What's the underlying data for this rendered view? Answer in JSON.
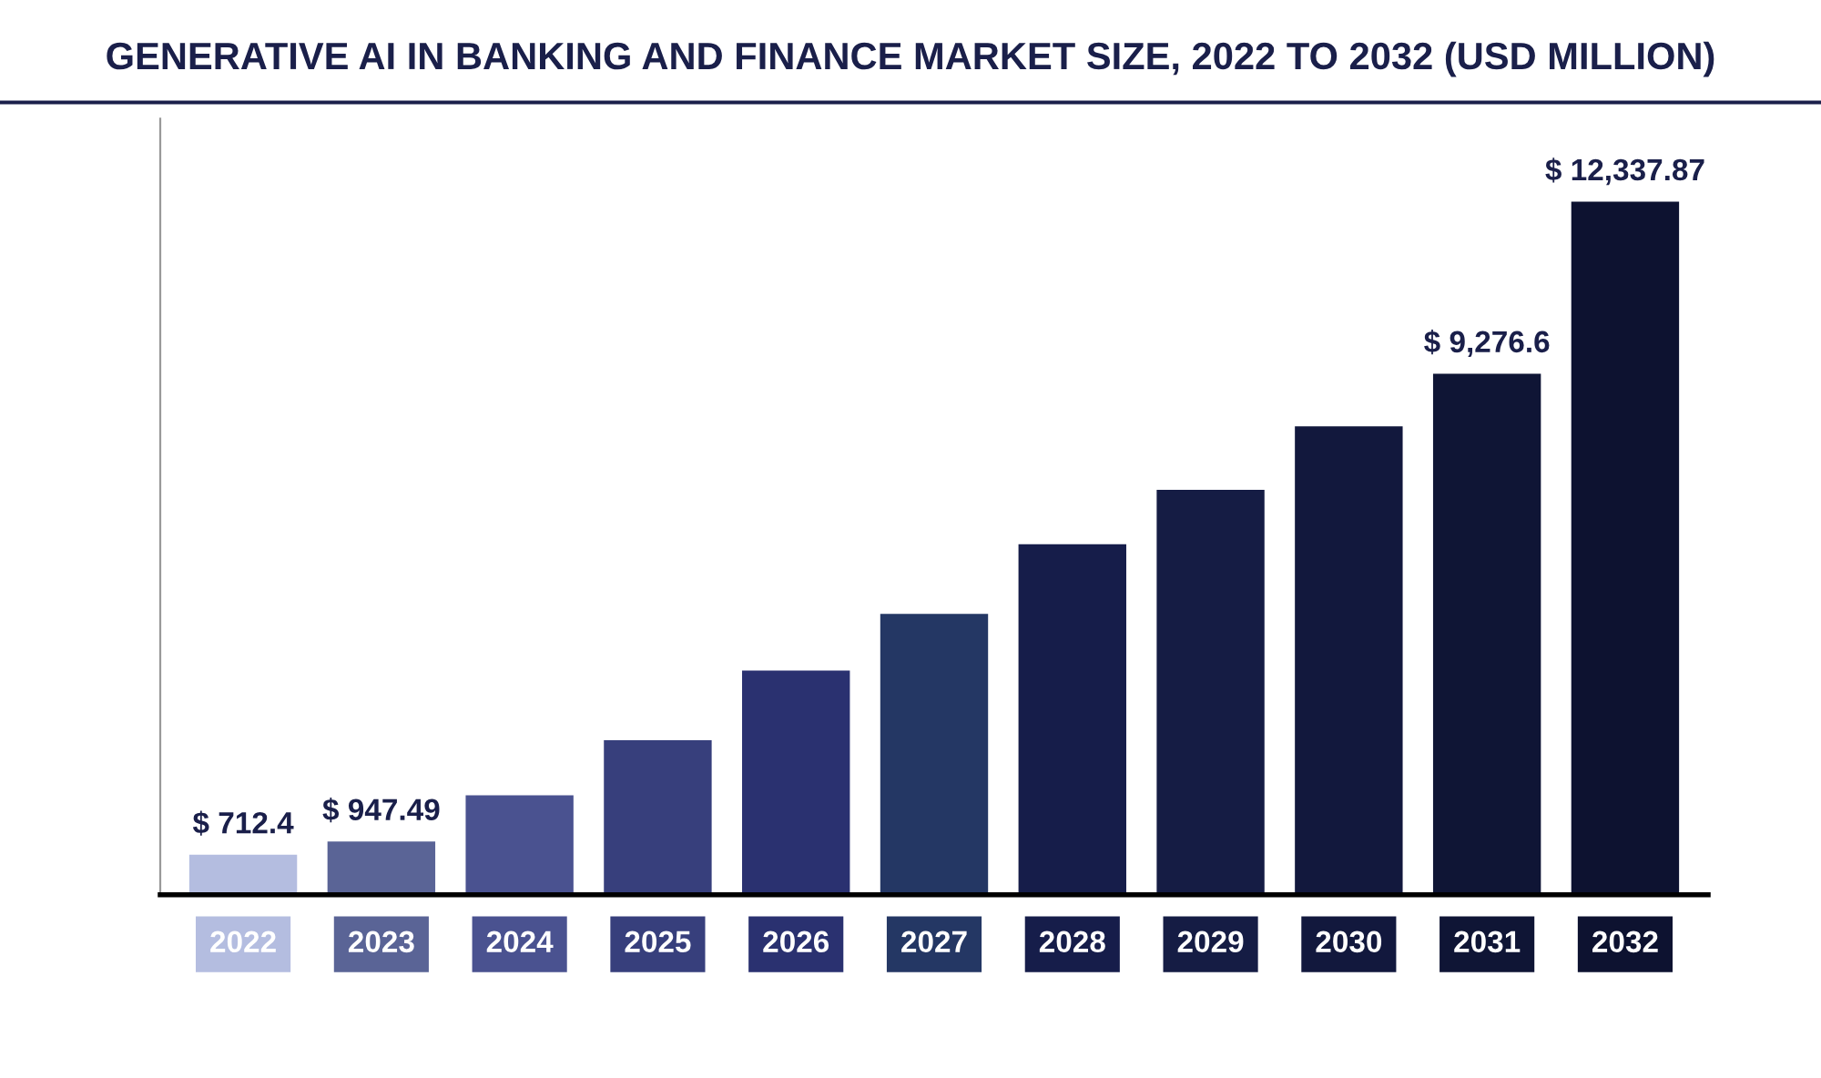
{
  "chart_data": {
    "type": "bar",
    "title": "GENERATIVE AI IN BANKING AND FINANCE MARKET SIZE, 2022 TO 2032 (USD MILLION)",
    "categories": [
      "2022",
      "2023",
      "2024",
      "2025",
      "2026",
      "2027",
      "2028",
      "2029",
      "2030",
      "2031",
      "2032"
    ],
    "values": [
      712.4,
      947.49,
      1770,
      2750,
      3990,
      5000,
      6240,
      7210,
      8340,
      9276.6,
      12337.87
    ],
    "value_labels": [
      "$ 712.4",
      "$ 947.49",
      null,
      null,
      null,
      null,
      null,
      null,
      null,
      "$ 9,276.6",
      "$ 12,337.87"
    ],
    "colors": [
      "#b4bde0",
      "#5a6496",
      "#4a5290",
      "#373f7c",
      "#2a3170",
      "#243764",
      "#161d4a",
      "#151c44",
      "#12183d",
      "#0f1535",
      "#0d1230"
    ]
  }
}
